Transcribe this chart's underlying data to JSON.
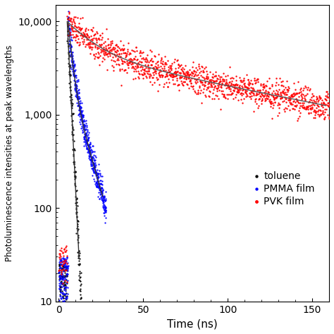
{
  "title": "",
  "xlabel": "Time (ns)",
  "ylabel": "Photoluminescence intensities at peak wavelengths",
  "xlim": [
    -2,
    160
  ],
  "ylim": [
    10,
    15000
  ],
  "legend_labels": [
    "toluene",
    "PMMA film",
    "PVK film"
  ],
  "legend_colors": [
    "black",
    "blue",
    "red"
  ],
  "toluene_peak_t": 5.0,
  "toluene_peak_I": 9800,
  "toluene_tau": 1.2,
  "pmma_peak_t": 5.5,
  "pmma_peak_I": 9900,
  "pmma_tau1": 2.0,
  "pmma_tau2": 7.0,
  "pmma_a1": 0.75,
  "pmma_a2": 0.25,
  "pvk_peak_t": 5.0,
  "pvk_peak_I": 9950,
  "pvk_tau1": 15.0,
  "pvk_tau2": 120.0,
  "pvk_a1": 0.55,
  "pvk_a2": 0.45,
  "background_color": "white"
}
